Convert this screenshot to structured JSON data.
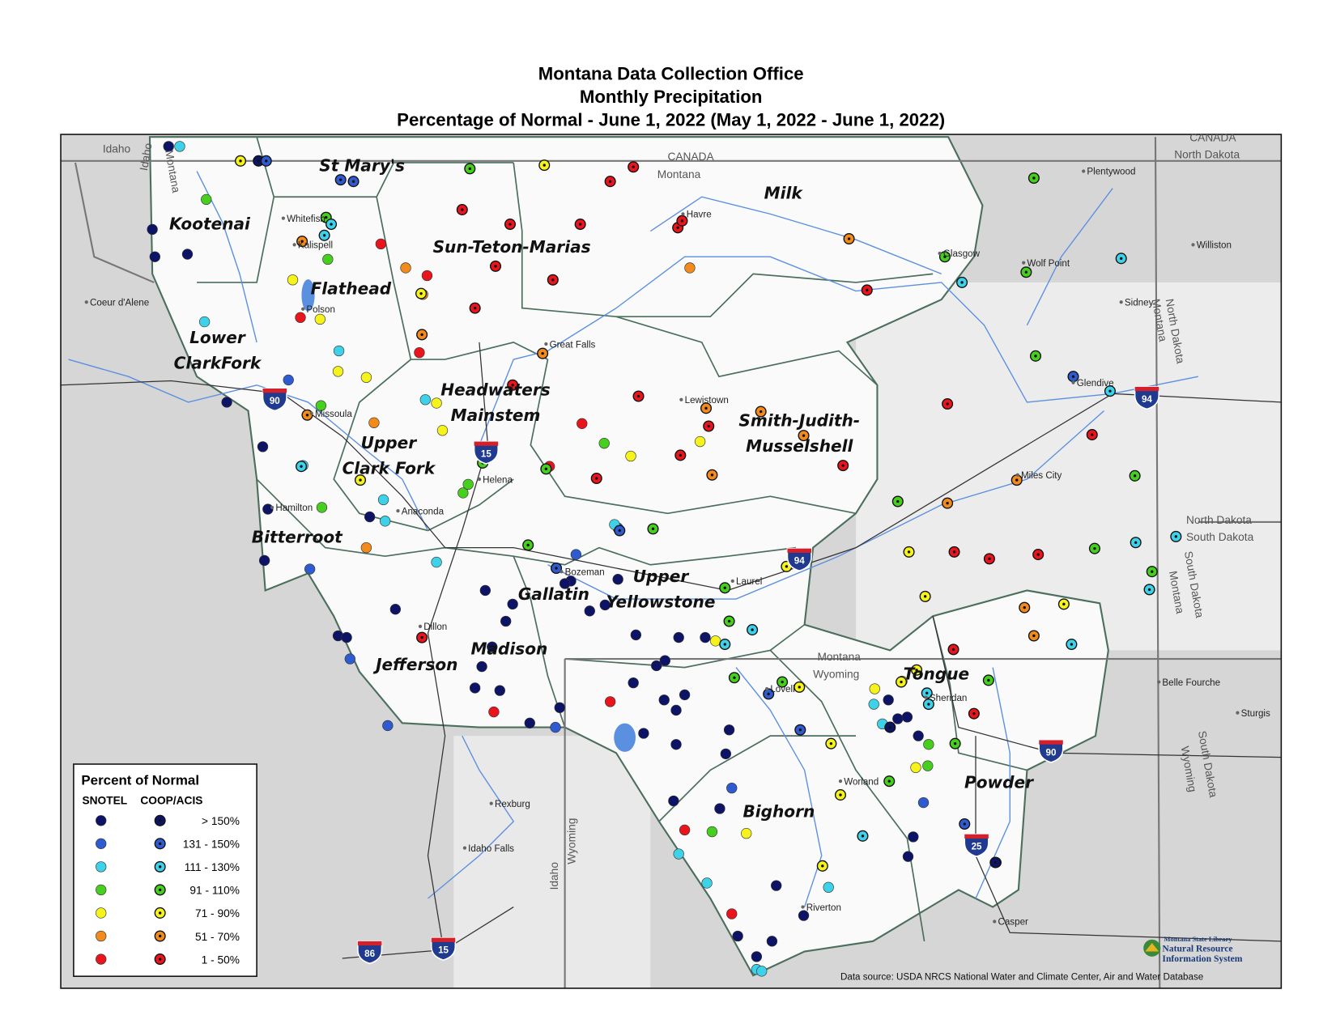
{
  "title": [
    "Montana Data Collection Office",
    "Monthly Precipitation",
    "Percentage of Normal - June 1, 2022 (May 1, 2022 - June 1, 2022)"
  ],
  "map": {
    "basins": [
      [
        "Kootenai"
      ],
      [
        "St Mary's"
      ],
      [
        "Flathead"
      ],
      [
        "Lower",
        "ClarkFork"
      ],
      [
        "Sun-Teton-Marias"
      ],
      [
        "Milk"
      ],
      [
        "Headwaters",
        "Mainstem"
      ],
      [
        "Smith-Judith-",
        "Musselshell"
      ],
      [
        "Upper",
        "Clark Fork"
      ],
      [
        "Bitterroot"
      ],
      [
        "Gallatin"
      ],
      [
        "Upper",
        "Yellowstone"
      ],
      [
        "Madison"
      ],
      [
        "Jefferson"
      ],
      [
        "Tongue"
      ],
      [
        "Bighorn"
      ],
      [
        "Powder"
      ]
    ],
    "places": [
      "Whitefish",
      "Kalispell",
      "Polson",
      "Coeur d'Alene",
      "Missoula",
      "Hamilton",
      "Anaconda",
      "Helena",
      "Great Falls",
      "Havre",
      "Lewistown",
      "Glasgow",
      "Wolf Point",
      "Plentywood",
      "Williston",
      "Sidney",
      "Glendive",
      "Miles City",
      "Bozeman",
      "Laurel",
      "Dillon",
      "Lovell",
      "Sheridan",
      "Belle Fourche",
      "Sturgis",
      "Worland",
      "Rexburg",
      "Idaho Falls",
      "Riverton",
      "Casper"
    ],
    "regions": [
      "Idaho",
      "Idaho",
      "Montana",
      "CANADA",
      "Montana",
      "CANADA",
      "North Dakota",
      "North Dakota",
      "Montana",
      "North Dakota",
      "South Dakota",
      "South Dakota",
      "Montana",
      "Montana",
      "Wyoming",
      "South Dakota",
      "Wyoming",
      "Idaho",
      "Wyoming"
    ],
    "interstates": [
      "90",
      "15",
      "94",
      "94",
      "90",
      "25",
      "86",
      "15"
    ]
  },
  "legend": {
    "title": "Percent of Normal",
    "columns": [
      "SNOTEL",
      "COOP/ACIS"
    ],
    "classes": [
      {
        "label": "> 150%",
        "color": "#0d1466"
      },
      {
        "label": "131 - 150%",
        "color": "#2f5bd0"
      },
      {
        "label": "111 - 130%",
        "color": "#3ed2ea"
      },
      {
        "label": "91 - 110%",
        "color": "#46cf1e"
      },
      {
        "label": "71 - 90%",
        "color": "#f6f21c"
      },
      {
        "label": "51 - 70%",
        "color": "#f28a1c"
      },
      {
        "label": "1 - 50%",
        "color": "#ea141c"
      }
    ]
  },
  "data_source": "Data source:  USDA NRCS National Water and Climate Center, Air and Water Database",
  "logo": [
    "Montana State Library",
    "Natural Resource",
    "Information System"
  ]
}
